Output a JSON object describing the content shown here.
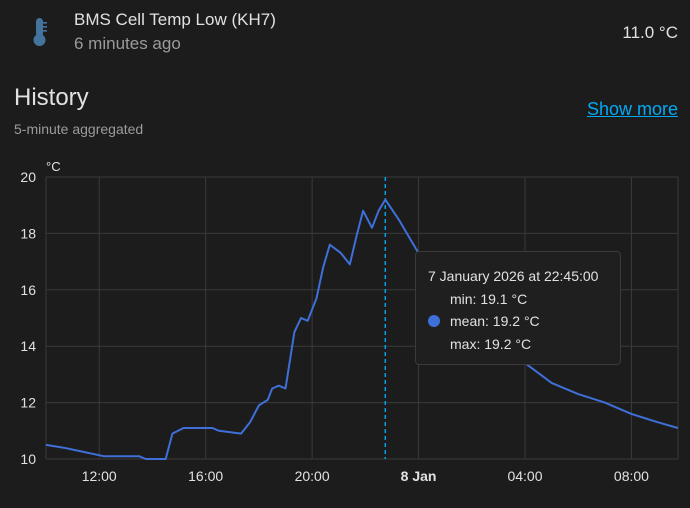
{
  "entity": {
    "name": "BMS Cell Temp Low (KH7)",
    "last_changed": "6 minutes ago",
    "state": "11.0 °C",
    "icon": "thermometer-icon"
  },
  "history": {
    "title": "History",
    "subtitle": "5-minute aggregated",
    "show_more": "Show more"
  },
  "colors": {
    "line": "#3f6fd8",
    "accent": "#03a9f4",
    "grid": "#3a3a3a"
  },
  "chart_data": {
    "type": "line",
    "ylabel": "°C",
    "ylim": [
      10,
      20
    ],
    "yticks": [
      "20",
      "18",
      "16",
      "14",
      "12",
      "10"
    ],
    "xlim": [
      "2026-01-07T10:00",
      "2026-01-08T09:45"
    ],
    "xticks": [
      {
        "t": "2026-01-07T12:00",
        "label": "12:00",
        "bold": false
      },
      {
        "t": "2026-01-07T16:00",
        "label": "16:00",
        "bold": false
      },
      {
        "t": "2026-01-07T20:00",
        "label": "20:00",
        "bold": false
      },
      {
        "t": "2026-01-08T00:00",
        "label": "8 Jan",
        "bold": true
      },
      {
        "t": "2026-01-08T04:00",
        "label": "04:00",
        "bold": false
      },
      {
        "t": "2026-01-08T08:00",
        "label": "08:00",
        "bold": false
      }
    ],
    "grid": true,
    "series": [
      {
        "x": [
          "2026-01-07T10:00",
          "2026-01-07T10:40",
          "2026-01-07T11:10",
          "2026-01-07T12:10",
          "2026-01-07T13:30",
          "2026-01-07T13:45",
          "2026-01-07T14:15",
          "2026-01-07T14:30",
          "2026-01-07T14:45",
          "2026-01-07T15:10",
          "2026-01-07T15:30",
          "2026-01-07T16:15",
          "2026-01-07T16:30",
          "2026-01-07T17:20",
          "2026-01-07T17:40",
          "2026-01-07T18:00",
          "2026-01-07T18:20",
          "2026-01-07T18:30",
          "2026-01-07T18:45",
          "2026-01-07T19:00",
          "2026-01-07T19:20",
          "2026-01-07T19:35",
          "2026-01-07T19:50",
          "2026-01-07T20:10",
          "2026-01-07T20:25",
          "2026-01-07T20:40",
          "2026-01-07T21:05",
          "2026-01-07T21:25",
          "2026-01-07T21:40",
          "2026-01-07T21:55",
          "2026-01-07T22:15",
          "2026-01-07T22:30",
          "2026-01-07T22:45",
          "2026-01-07T23:15",
          "2026-01-08T00:00",
          "2026-01-08T01:00",
          "2026-01-08T02:00",
          "2026-01-08T03:00",
          "2026-01-08T04:00",
          "2026-01-08T05:00",
          "2026-01-08T06:00",
          "2026-01-08T07:00",
          "2026-01-08T08:00",
          "2026-01-08T09:00",
          "2026-01-08T09:45"
        ],
        "y": [
          10.5,
          10.4,
          10.3,
          10.1,
          10.1,
          10.0,
          10.0,
          10.0,
          10.9,
          11.1,
          11.1,
          11.1,
          11.0,
          10.9,
          11.3,
          11.9,
          12.1,
          12.5,
          12.6,
          12.5,
          14.5,
          15.0,
          14.9,
          15.7,
          16.8,
          17.6,
          17.3,
          16.9,
          17.9,
          18.8,
          18.2,
          18.8,
          19.2,
          18.5,
          17.3,
          16.2,
          15.2,
          14.3,
          13.4,
          12.7,
          12.3,
          12.0,
          11.6,
          11.3,
          11.1
        ]
      }
    ],
    "tooltip": {
      "title": "7 January 2026 at 22:45:00",
      "min": "min: 19.1 °C",
      "mean": "mean: 19.2 °C",
      "max": "max: 19.2 °C",
      "x": "2026-01-07T22:45"
    }
  }
}
